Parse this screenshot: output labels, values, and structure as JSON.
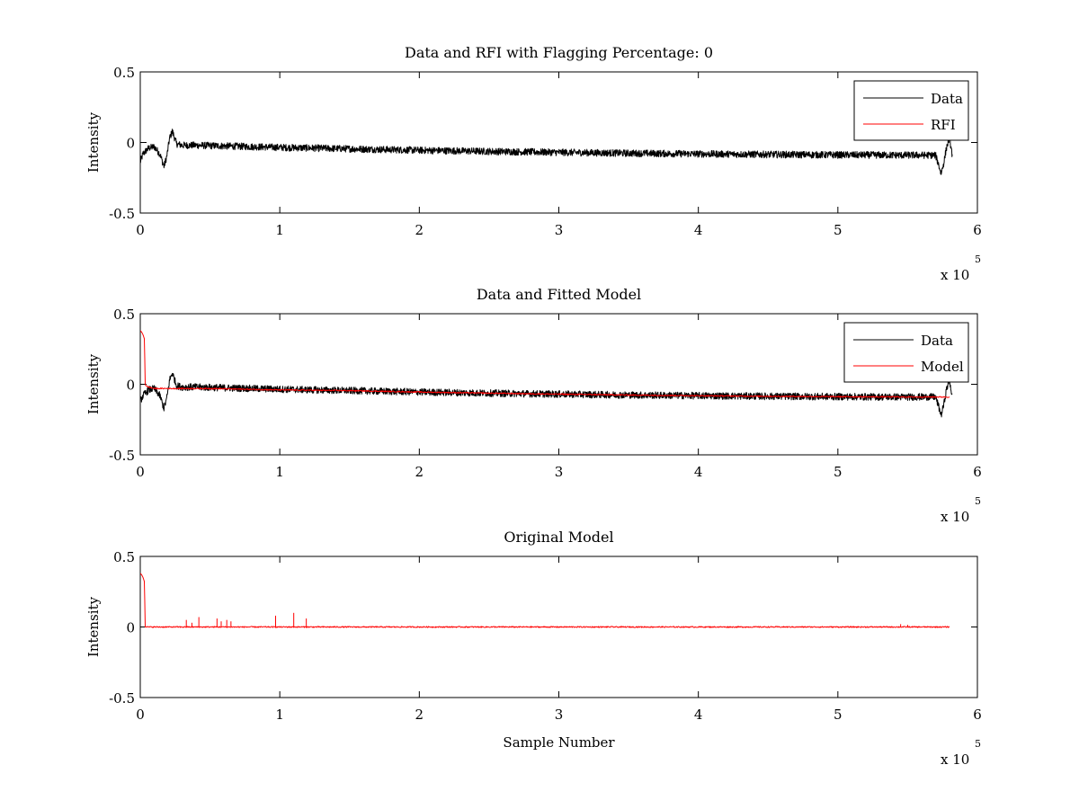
{
  "chart_data": [
    {
      "type": "line",
      "title": "Data and RFI with Flagging Percentage: 0",
      "xlabel": "",
      "ylabel": "Intensity",
      "xlim": [
        0,
        6
      ],
      "ylim": [
        -0.5,
        0.5
      ],
      "x_multiplier_label": "x 10",
      "x_multiplier_exponent": "5",
      "xticks": [
        "0",
        "1",
        "2",
        "3",
        "4",
        "5",
        "6"
      ],
      "yticks": [
        "-0.5",
        "0",
        "0.5"
      ],
      "legend": {
        "position": "top-right",
        "entries": [
          {
            "label": "Data",
            "color": "#000000"
          },
          {
            "label": "RFI",
            "color": "#ff0000"
          }
        ]
      },
      "series": [
        {
          "name": "Data",
          "color": "#000000",
          "x": [
            0,
            0.02,
            0.06,
            0.1,
            0.14,
            0.17,
            0.19,
            0.21,
            0.23,
            0.26,
            0.3,
            0.4,
            0.6,
            0.8,
            1.0,
            1.5,
            2.0,
            2.5,
            3.0,
            3.5,
            4.0,
            4.5,
            5.0,
            5.5,
            5.7,
            5.72,
            5.74,
            5.76,
            5.78,
            5.8,
            5.82
          ],
          "y": [
            -0.14,
            -0.08,
            -0.04,
            -0.03,
            -0.08,
            -0.17,
            -0.1,
            0.03,
            0.08,
            -0.01,
            -0.02,
            -0.02,
            -0.025,
            -0.03,
            -0.035,
            -0.045,
            -0.055,
            -0.063,
            -0.07,
            -0.076,
            -0.081,
            -0.085,
            -0.088,
            -0.09,
            -0.09,
            -0.15,
            -0.22,
            -0.14,
            -0.03,
            0.03,
            -0.09
          ],
          "noise_band": 0.025
        },
        {
          "name": "RFI",
          "color": "#ff0000",
          "x": [],
          "y": []
        }
      ]
    },
    {
      "type": "line",
      "title": "Data and Fitted Model",
      "xlabel": "",
      "ylabel": "Intensity",
      "xlim": [
        0,
        6
      ],
      "ylim": [
        -0.5,
        0.5
      ],
      "x_multiplier_label": "x 10",
      "x_multiplier_exponent": "5",
      "xticks": [
        "0",
        "1",
        "2",
        "3",
        "4",
        "5",
        "6"
      ],
      "yticks": [
        "-0.5",
        "0",
        "0.5"
      ],
      "legend": {
        "position": "top-right",
        "entries": [
          {
            "label": "Data",
            "color": "#000000"
          },
          {
            "label": "Model",
            "color": "#ff0000"
          }
        ]
      },
      "series": [
        {
          "name": "Data",
          "color": "#000000",
          "x": [
            0,
            0.02,
            0.06,
            0.1,
            0.14,
            0.17,
            0.19,
            0.21,
            0.23,
            0.26,
            0.3,
            0.4,
            0.6,
            0.8,
            1.0,
            1.5,
            2.0,
            2.5,
            3.0,
            3.5,
            4.0,
            4.5,
            5.0,
            5.5,
            5.7,
            5.72,
            5.74,
            5.76,
            5.78,
            5.8,
            5.82
          ],
          "y": [
            -0.12,
            -0.08,
            -0.04,
            -0.03,
            -0.08,
            -0.17,
            -0.1,
            0.03,
            0.08,
            -0.01,
            -0.02,
            -0.02,
            -0.025,
            -0.03,
            -0.035,
            -0.045,
            -0.055,
            -0.063,
            -0.07,
            -0.076,
            -0.081,
            -0.085,
            -0.088,
            -0.09,
            -0.09,
            -0.15,
            -0.22,
            -0.14,
            -0.03,
            0.03,
            -0.09
          ],
          "noise_band": 0.025
        },
        {
          "name": "Model",
          "color": "#ff0000",
          "x": [
            0,
            0.01,
            0.02,
            0.03,
            0.035,
            0.04,
            0.06,
            0.1,
            0.2,
            0.5,
            1.0,
            1.5,
            2.0,
            2.5,
            3.0,
            3.5,
            4.0,
            4.5,
            5.0,
            5.5,
            5.8
          ],
          "y": [
            0.38,
            0.37,
            0.35,
            0.32,
            0.0,
            -0.01,
            -0.02,
            -0.03,
            -0.03,
            -0.03,
            -0.04,
            -0.045,
            -0.055,
            -0.063,
            -0.07,
            -0.076,
            -0.081,
            -0.085,
            -0.088,
            -0.09,
            -0.09
          ]
        }
      ]
    },
    {
      "type": "line",
      "title": "Original Model",
      "xlabel": "Sample Number",
      "ylabel": "Intensity",
      "xlim": [
        0,
        6
      ],
      "ylim": [
        -0.5,
        0.5
      ],
      "x_multiplier_label": "x 10",
      "x_multiplier_exponent": "5",
      "xticks": [
        "0",
        "1",
        "2",
        "3",
        "4",
        "5",
        "6"
      ],
      "yticks": [
        "-0.5",
        "0",
        "0.5"
      ],
      "legend": null,
      "series": [
        {
          "name": "",
          "color": "#ff0000",
          "x": [
            0,
            0.01,
            0.02,
            0.03,
            0.035,
            0.04,
            0.06,
            5.8
          ],
          "y": [
            0.38,
            0.37,
            0.35,
            0.32,
            0.0,
            0.0,
            0.0,
            0.0
          ],
          "spikes": [
            {
              "x": 0.33,
              "y": 0.05
            },
            {
              "x": 0.37,
              "y": 0.03
            },
            {
              "x": 0.42,
              "y": 0.07
            },
            {
              "x": 0.55,
              "y": 0.06
            },
            {
              "x": 0.58,
              "y": 0.04
            },
            {
              "x": 0.62,
              "y": 0.05
            },
            {
              "x": 0.65,
              "y": 0.04
            },
            {
              "x": 0.97,
              "y": 0.08
            },
            {
              "x": 1.1,
              "y": 0.1
            },
            {
              "x": 1.19,
              "y": 0.06
            },
            {
              "x": 5.45,
              "y": 0.02
            },
            {
              "x": 5.5,
              "y": 0.015
            }
          ]
        }
      ]
    }
  ]
}
